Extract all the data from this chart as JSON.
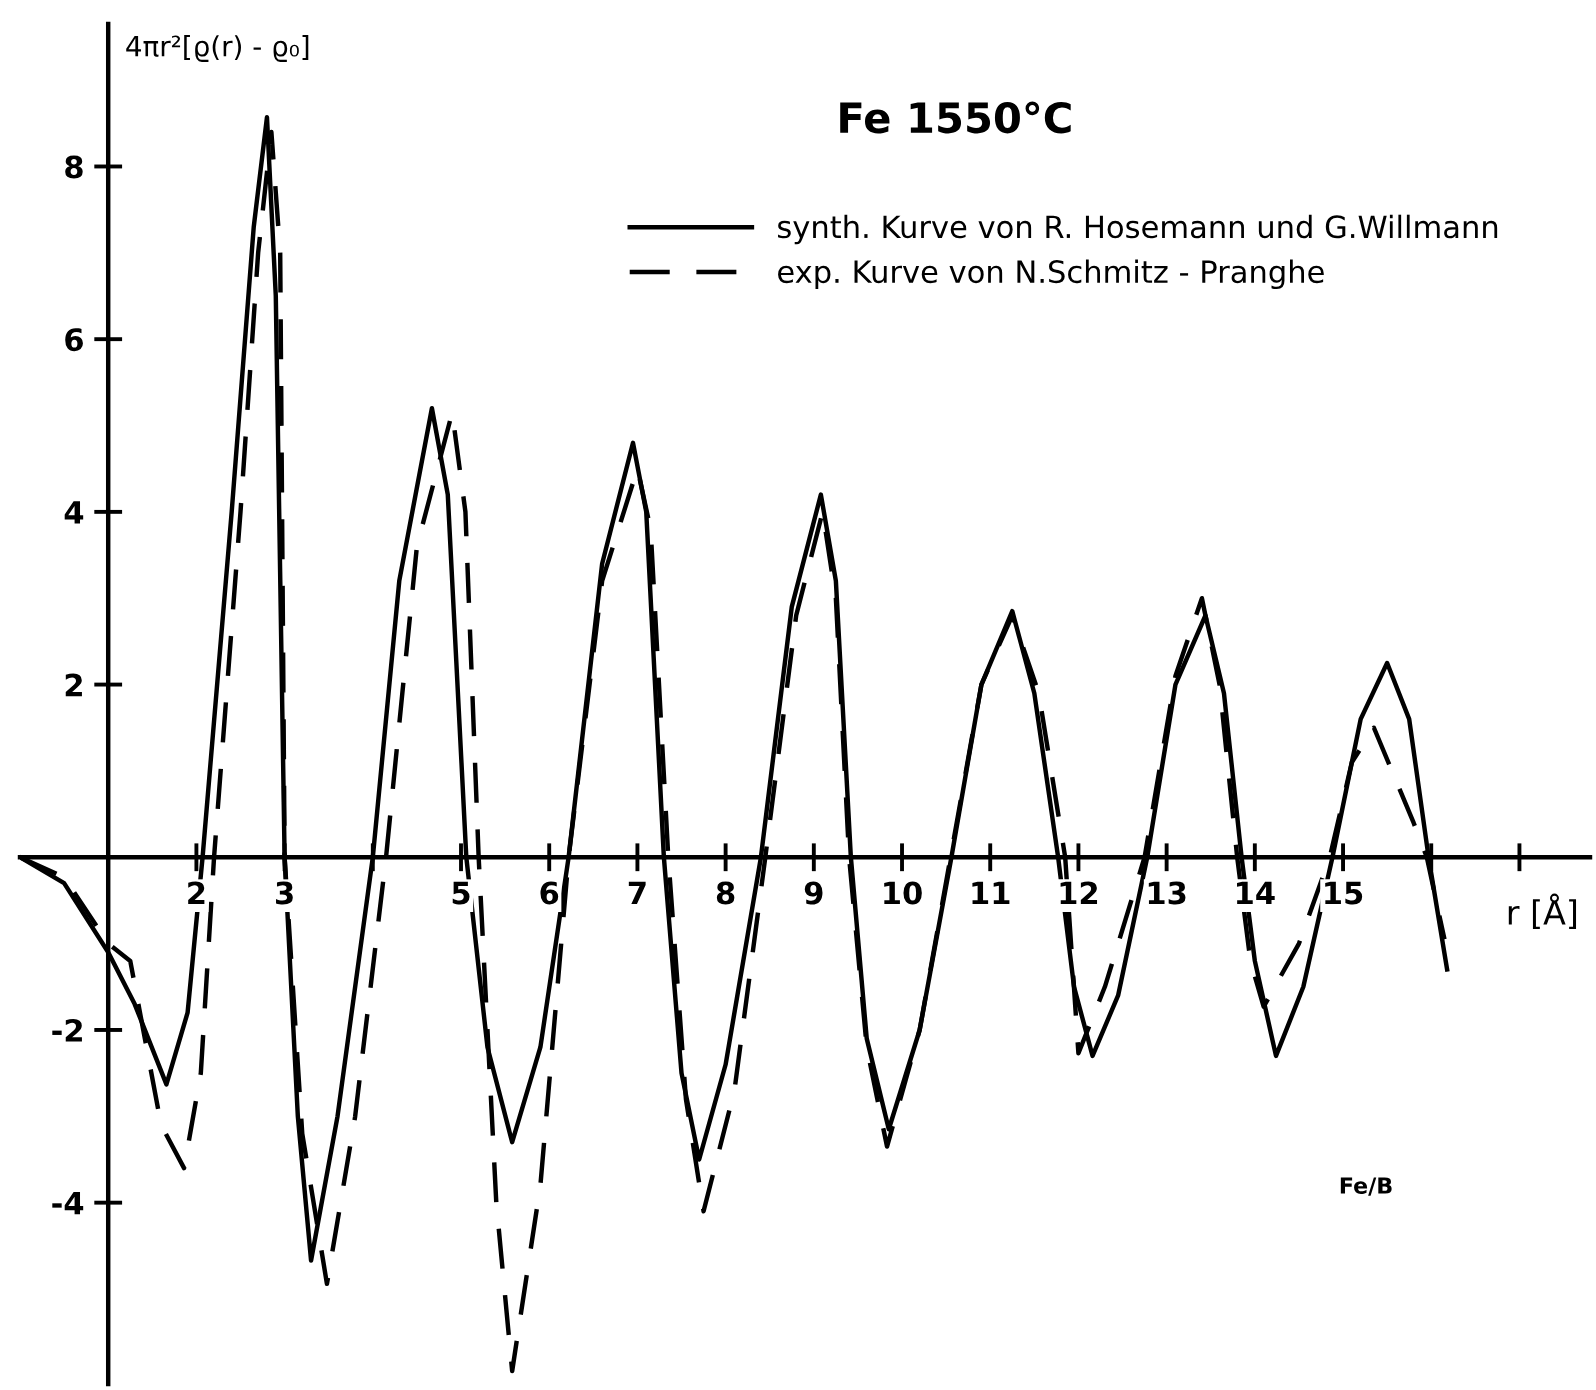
{
  "chart_data": {
    "type": "line",
    "title": "Fe 1550°C",
    "ylabel": "4πr²[ϱ(r) - ϱ₀]",
    "xlabel": "r [Å]",
    "annotations": [
      "Fe/B"
    ],
    "xlim": [
      0,
      17.8
    ],
    "ylim": [
      -6.1,
      9.65
    ],
    "xticks": [
      {
        "value": 2,
        "label": "2"
      },
      3,
      {
        "value": 4,
        "label": null
      },
      5,
      6,
      7,
      8,
      9,
      10,
      11,
      12,
      13,
      14,
      15,
      {
        "value": 16,
        "label": null
      },
      {
        "value": 17,
        "label": null
      }
    ],
    "yticks": [
      -4,
      -2,
      2,
      4,
      6,
      8
    ],
    "legend": "top right",
    "grid": false,
    "series": [
      {
        "name": "synth. Kurve von R. Hosemann und G.Willmann",
        "color": "#000000",
        "line_style": "solid",
        "x": [
          0,
          0.5,
          1,
          1.3,
          1.66,
          1.9,
          2.07,
          2.4,
          2.65,
          2.8,
          2.9,
          3.0,
          3.15,
          3.3,
          3.6,
          4.0,
          4.3,
          4.67,
          4.85,
          5.06,
          5.3,
          5.58,
          5.9,
          6.22,
          6.6,
          6.95,
          7.1,
          7.3,
          7.5,
          7.7,
          8.0,
          8.4,
          8.75,
          9.08,
          9.25,
          9.42,
          9.6,
          9.85,
          10.2,
          10.56,
          10.9,
          11.25,
          11.5,
          11.77,
          11.95,
          12.16,
          12.45,
          12.78,
          13.1,
          13.44,
          13.65,
          13.85,
          14.0,
          14.24,
          14.55,
          14.88,
          15.2,
          15.5,
          15.75,
          15.97,
          16.18
        ],
        "values": [
          0,
          -0.3,
          -1.1,
          -1.7,
          -2.63,
          -1.8,
          0,
          4.0,
          7.3,
          8.57,
          6.5,
          0,
          -3.0,
          -4.67,
          -3.0,
          0,
          3.2,
          5.2,
          4.2,
          0,
          -2.2,
          -3.3,
          -2.2,
          0,
          3.4,
          4.8,
          4.0,
          0,
          -2.5,
          -3.5,
          -2.4,
          0,
          2.9,
          4.2,
          3.2,
          0,
          -2.1,
          -3.15,
          -2.0,
          0,
          2.0,
          2.85,
          1.9,
          0,
          -1.5,
          -2.3,
          -1.6,
          0,
          2.0,
          2.8,
          1.9,
          0,
          -1.2,
          -2.3,
          -1.5,
          0,
          1.6,
          2.25,
          1.6,
          0,
          -1.3
        ]
      },
      {
        "name": "exp. Kurve von N.Schmitz - Pranghe",
        "color": "#000000",
        "line_style": "dashed",
        "x": [
          0,
          0.5,
          1,
          1.25,
          1.6,
          1.86,
          2.05,
          2.2,
          2.5,
          2.7,
          2.85,
          2.95,
          3.0,
          3.2,
          3.48,
          3.8,
          4.15,
          4.5,
          4.9,
          5.05,
          5.2,
          5.4,
          5.58,
          5.9,
          6.22,
          6.6,
          7.0,
          7.15,
          7.35,
          7.55,
          7.75,
          8.1,
          8.45,
          8.8,
          9.1,
          9.25,
          9.4,
          9.6,
          9.83,
          10.2,
          10.55,
          10.9,
          11.25,
          11.55,
          11.85,
          12.0,
          12.3,
          12.75,
          13.1,
          13.4,
          13.6,
          13.8,
          13.95,
          14.1,
          14.5,
          14.85,
          15.1,
          15.35,
          15.8,
          15.95,
          16.15
        ],
        "values": [
          0,
          -0.23,
          -1.0,
          -1.2,
          -3.1,
          -3.6,
          -2.5,
          0,
          4.0,
          7.0,
          8.4,
          7.0,
          0,
          -3.2,
          -4.94,
          -3.0,
          0,
          3.6,
          5.15,
          4.0,
          0,
          -4.0,
          -5.95,
          -3.8,
          0,
          3.2,
          4.5,
          3.8,
          0,
          -2.8,
          -4.1,
          -2.7,
          0,
          2.8,
          4.0,
          3.0,
          0,
          -2.2,
          -3.35,
          -2.0,
          0,
          2.0,
          2.8,
          1.9,
          0,
          -2.27,
          -1.5,
          0,
          2.1,
          3.0,
          2.0,
          0,
          -1.2,
          -1.73,
          -1.0,
          0,
          1.1,
          1.5,
          0.4,
          0,
          -0.95
        ]
      }
    ]
  }
}
